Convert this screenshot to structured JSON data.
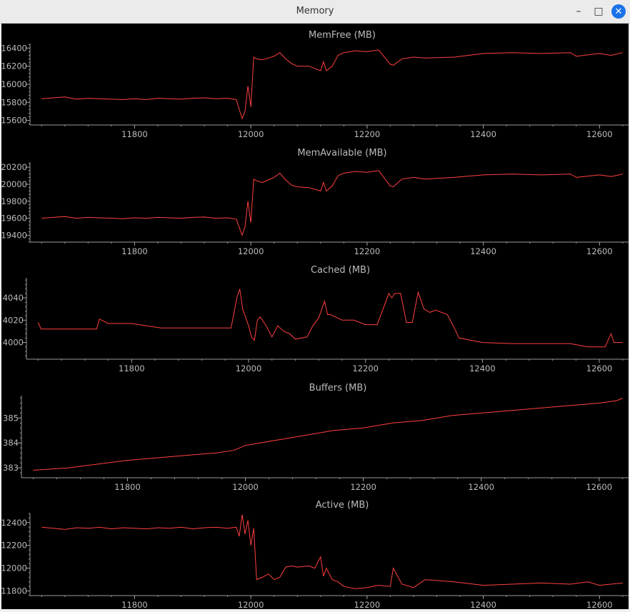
{
  "window": {
    "title": "Memory",
    "controls": {
      "minimize": "–",
      "maximize": "□",
      "close": "✕"
    }
  },
  "colors": {
    "line": "#ff4040",
    "axis": "#9a9a9a",
    "text": "#bbbbbb",
    "background": "#000000"
  },
  "chart_data": [
    {
      "type": "line",
      "title": "MemFree (MB)",
      "xlim": [
        11620,
        12650
      ],
      "xticks": [
        11800,
        12000,
        12200,
        12400,
        12600
      ],
      "ylim": [
        15550,
        16450
      ],
      "yticks": [
        15600,
        15800,
        16000,
        16200,
        16400
      ],
      "series": [
        {
          "x": [
            11640,
            11660,
            11680,
            11700,
            11720,
            11740,
            11760,
            11780,
            11800,
            11820,
            11840,
            11860,
            11880,
            11900,
            11920,
            11940,
            11960,
            11975,
            11985,
            11990,
            11995,
            12000,
            12005,
            12010,
            12020,
            12030,
            12040,
            12050,
            12060,
            12070,
            12080,
            12100,
            12120,
            12125,
            12130,
            12140,
            12150,
            12160,
            12180,
            12200,
            12220,
            12240,
            12245,
            12260,
            12280,
            12300,
            12350,
            12400,
            12450,
            12500,
            12550,
            12560,
            12600,
            12620,
            12640
          ],
          "y": [
            15840,
            15850,
            15860,
            15835,
            15845,
            15840,
            15835,
            15830,
            15840,
            15830,
            15845,
            15840,
            15835,
            15845,
            15850,
            15840,
            15845,
            15830,
            15620,
            15700,
            15980,
            15750,
            16300,
            16280,
            16270,
            16290,
            16310,
            16350,
            16280,
            16230,
            16200,
            16200,
            16150,
            16250,
            16150,
            16200,
            16320,
            16350,
            16370,
            16360,
            16380,
            16220,
            16210,
            16280,
            16300,
            16290,
            16300,
            16340,
            16350,
            16340,
            16350,
            16310,
            16340,
            16320,
            16350
          ]
        }
      ]
    },
    {
      "type": "line",
      "title": "MemAvailable (MB)",
      "xlim": [
        11620,
        12650
      ],
      "xticks": [
        11800,
        12000,
        12200,
        12400,
        12600
      ],
      "ylim": [
        19320,
        20260
      ],
      "yticks": [
        19400,
        19600,
        19800,
        20000,
        20200
      ],
      "series": [
        {
          "x": [
            11640,
            11660,
            11680,
            11700,
            11720,
            11740,
            11760,
            11780,
            11800,
            11820,
            11840,
            11860,
            11880,
            11900,
            11920,
            11940,
            11960,
            11975,
            11985,
            11990,
            11995,
            12000,
            12005,
            12010,
            12020,
            12030,
            12040,
            12050,
            12060,
            12070,
            12080,
            12100,
            12120,
            12125,
            12130,
            12140,
            12150,
            12160,
            12180,
            12200,
            12220,
            12240,
            12245,
            12260,
            12280,
            12300,
            12350,
            12400,
            12450,
            12500,
            12550,
            12560,
            12600,
            12620,
            12640
          ],
          "y": [
            19600,
            19610,
            19620,
            19600,
            19610,
            19605,
            19600,
            19595,
            19605,
            19600,
            19610,
            19605,
            19600,
            19610,
            19615,
            19600,
            19605,
            19590,
            19400,
            19500,
            19800,
            19550,
            20060,
            20040,
            20020,
            20050,
            20080,
            20130,
            20050,
            19990,
            19970,
            19960,
            19920,
            20020,
            19920,
            19980,
            20100,
            20130,
            20150,
            20140,
            20160,
            19980,
            19970,
            20060,
            20080,
            20060,
            20080,
            20110,
            20120,
            20110,
            20120,
            20080,
            20110,
            20090,
            20120
          ]
        }
      ]
    },
    {
      "type": "line",
      "title": "Cached (MB)",
      "xlim": [
        11620,
        12650
      ],
      "xticks": [
        11800,
        12000,
        12200,
        12400,
        12600
      ],
      "ylim": [
        3985,
        4058
      ],
      "yticks": [
        4000,
        4020,
        4040
      ],
      "series": [
        {
          "x": [
            11640,
            11645,
            11700,
            11740,
            11745,
            11760,
            11800,
            11850,
            11900,
            11950,
            11970,
            11980,
            11985,
            11990,
            12000,
            12005,
            12010,
            12015,
            12020,
            12030,
            12040,
            12050,
            12060,
            12070,
            12080,
            12100,
            12110,
            12120,
            12130,
            12135,
            12140,
            12160,
            12180,
            12200,
            12220,
            12240,
            12245,
            12250,
            12260,
            12270,
            12280,
            12290,
            12300,
            12310,
            12320,
            12340,
            12350,
            12360,
            12400,
            12450,
            12500,
            12550,
            12580,
            12600,
            12610,
            12620,
            12625,
            12640
          ],
          "y": [
            4018,
            4012,
            4012,
            4012,
            4021,
            4017,
            4017,
            4013,
            4013,
            4013,
            4013,
            4040,
            4048,
            4030,
            4015,
            4005,
            4002,
            4020,
            4023,
            4015,
            4005,
            4015,
            4010,
            4008,
            4003,
            4005,
            4015,
            4022,
            4037,
            4025,
            4025,
            4020,
            4020,
            4016,
            4016,
            4044,
            4040,
            4044,
            4044,
            4018,
            4018,
            4045,
            4030,
            4027,
            4029,
            4025,
            4015,
            4004,
            4000,
            3999,
            3999,
            3999,
            3996,
            3996,
            3996,
            4008,
            4000,
            4000
          ]
        }
      ]
    },
    {
      "type": "line",
      "title": "Buffers (MB)",
      "xlim": [
        11620,
        12650
      ],
      "xticks": [
        11800,
        12000,
        12200,
        12400,
        12600
      ],
      "ylim": [
        382.6,
        385.9
      ],
      "yticks": [
        383,
        384,
        385
      ],
      "series": [
        {
          "x": [
            11640,
            11700,
            11800,
            11900,
            11950,
            11980,
            12000,
            12050,
            12100,
            12150,
            12200,
            12250,
            12300,
            12350,
            12400,
            12450,
            12500,
            12550,
            12600,
            12630,
            12640
          ],
          "y": [
            382.9,
            383.0,
            383.3,
            383.5,
            383.6,
            383.7,
            383.9,
            384.1,
            384.3,
            384.5,
            384.6,
            384.8,
            384.9,
            385.1,
            385.2,
            385.3,
            385.4,
            385.5,
            385.6,
            385.7,
            385.8
          ]
        }
      ]
    },
    {
      "type": "line",
      "title": "Active (MB)",
      "xlim": [
        11620,
        12650
      ],
      "xticks": [
        11800,
        12000,
        12200,
        12400,
        12600
      ],
      "ylim": [
        11760,
        12480
      ],
      "yticks": [
        11800,
        12000,
        12200,
        12400
      ],
      "series": [
        {
          "x": [
            11640,
            11660,
            11680,
            11700,
            11720,
            11740,
            11760,
            11780,
            11800,
            11820,
            11840,
            11860,
            11880,
            11900,
            11920,
            11940,
            11960,
            11975,
            11980,
            11985,
            11990,
            11995,
            12000,
            12005,
            12010,
            12020,
            12030,
            12040,
            12050,
            12060,
            12070,
            12080,
            12100,
            12110,
            12120,
            12125,
            12130,
            12140,
            12150,
            12160,
            12180,
            12200,
            12220,
            12240,
            12245,
            12260,
            12280,
            12300,
            12350,
            12400,
            12450,
            12500,
            12550,
            12580,
            12600,
            12620,
            12640
          ],
          "y": [
            12360,
            12350,
            12340,
            12355,
            12350,
            12360,
            12345,
            12355,
            12350,
            12345,
            12355,
            12350,
            12360,
            12345,
            12355,
            12360,
            12350,
            12360,
            12280,
            12470,
            12300,
            12420,
            12200,
            12350,
            11900,
            11920,
            11950,
            11900,
            11920,
            12010,
            12020,
            12010,
            12020,
            12000,
            12100,
            11930,
            12000,
            11900,
            11880,
            11840,
            11820,
            11830,
            11850,
            11840,
            12000,
            11860,
            11830,
            11900,
            11880,
            11850,
            11860,
            11870,
            11860,
            11880,
            11850,
            11860,
            11870
          ]
        }
      ]
    }
  ]
}
